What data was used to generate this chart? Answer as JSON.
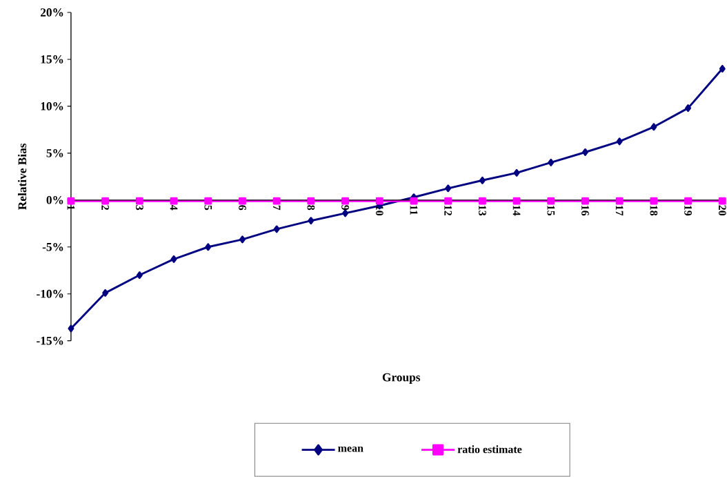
{
  "chart_data": {
    "type": "line",
    "xlabel": "Groups",
    "ylabel": "Relative Bias",
    "categories": [
      "1",
      "2",
      "3",
      "4",
      "5",
      "6",
      "7",
      "8",
      "9",
      "10",
      "11",
      "12",
      "13",
      "14",
      "15",
      "16",
      "17",
      "18",
      "19",
      "20"
    ],
    "series": [
      {
        "name": "mean",
        "color": "#000080",
        "marker": "diamond",
        "values": [
          -13.7,
          -9.9,
          -8.0,
          -6.3,
          -5.0,
          -4.2,
          -3.1,
          -2.2,
          -1.4,
          -0.6,
          0.3,
          1.25,
          2.1,
          2.9,
          4.0,
          5.1,
          6.25,
          7.8,
          9.8,
          14.0
        ]
      },
      {
        "name": "ratio estimate",
        "color": "#ff00ff",
        "marker": "square",
        "values": [
          -0.1,
          -0.1,
          -0.1,
          -0.1,
          -0.1,
          -0.1,
          -0.1,
          -0.1,
          -0.1,
          -0.1,
          -0.1,
          -0.1,
          -0.1,
          -0.1,
          -0.1,
          -0.1,
          -0.1,
          -0.1,
          -0.1,
          -0.1
        ]
      }
    ],
    "ylim": [
      -15,
      20
    ],
    "yticks": [
      {
        "value": -15,
        "label": "-15%"
      },
      {
        "value": -10,
        "label": "-10%"
      },
      {
        "value": -5,
        "label": "-5%"
      },
      {
        "value": 0,
        "label": "0%"
      },
      {
        "value": 5,
        "label": "5%"
      },
      {
        "value": 10,
        "label": "10%"
      },
      {
        "value": 15,
        "label": "15%"
      },
      {
        "value": 20,
        "label": "20%"
      }
    ],
    "grid": false,
    "legend": "bottom",
    "line_style": "solid"
  }
}
